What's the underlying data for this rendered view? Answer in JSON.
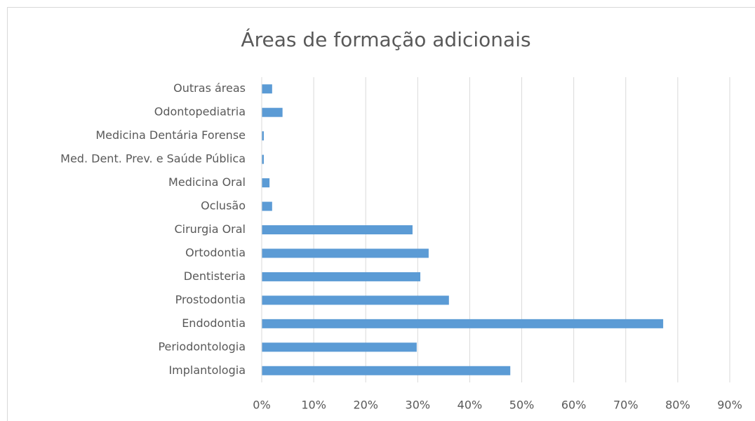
{
  "chart_data": {
    "type": "bar",
    "orientation": "horizontal",
    "title": "Áreas de formação adicionais",
    "categories": [
      "Outras áreas",
      "Odontopediatria",
      "Medicina Dentária Forense",
      "Med. Dent. Prev. e Saúde Pública",
      "Medicina Oral",
      "Oclusão",
      "Cirurgia Oral",
      "Ortodontia",
      "Dentisteria",
      "Prostodontia",
      "Endodontia",
      "Periodontologia",
      "Implantologia"
    ],
    "values": [
      2.0,
      4.0,
      0.4,
      0.4,
      1.5,
      2.0,
      29.0,
      32.1,
      30.5,
      36.0,
      77.2,
      29.8,
      47.8
    ],
    "color": "#5b9bd5",
    "xlim": [
      0,
      90
    ],
    "xticks": [
      {
        "value": 0,
        "label": "0%"
      },
      {
        "value": 10,
        "label": "10%"
      },
      {
        "value": 20,
        "label": "20%"
      },
      {
        "value": 30,
        "label": "30%"
      },
      {
        "value": 40,
        "label": "40%"
      },
      {
        "value": 50,
        "label": "50%"
      },
      {
        "value": 60,
        "label": "60%"
      },
      {
        "value": 70,
        "label": "70%"
      },
      {
        "value": 80,
        "label": "80%"
      },
      {
        "value": 90,
        "label": "90%"
      }
    ],
    "grid": true
  }
}
